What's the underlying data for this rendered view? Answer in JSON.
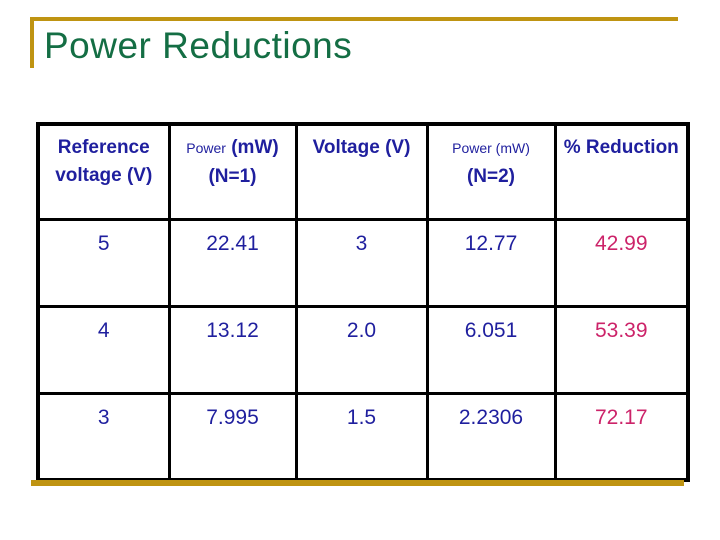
{
  "title": "Power Reductions",
  "colors": {
    "accent_gold": "#BF9412",
    "title_green": "#146E44",
    "text_navy": "#1F1F9E",
    "value_pink": "#CC2369",
    "border_black": "#000000",
    "background": "#FFFFFF"
  },
  "table": {
    "headers": [
      {
        "line1": "Reference",
        "line2": "voltage (V)"
      },
      {
        "small": "Power",
        "unit": "(mW)",
        "line2": "(N=1)"
      },
      {
        "line1": "Voltage (V)"
      },
      {
        "small": "Power (mW)",
        "line2": "(N=2)"
      },
      {
        "line1": "% Reduction"
      }
    ],
    "rows": [
      [
        "5",
        "22.41",
        "3",
        "12.77",
        "42.99"
      ],
      [
        "4",
        "13.12",
        "2.0",
        "6.051",
        "53.39"
      ],
      [
        "3",
        "7.995",
        "1.5",
        "2.2306",
        "72.17"
      ]
    ]
  }
}
